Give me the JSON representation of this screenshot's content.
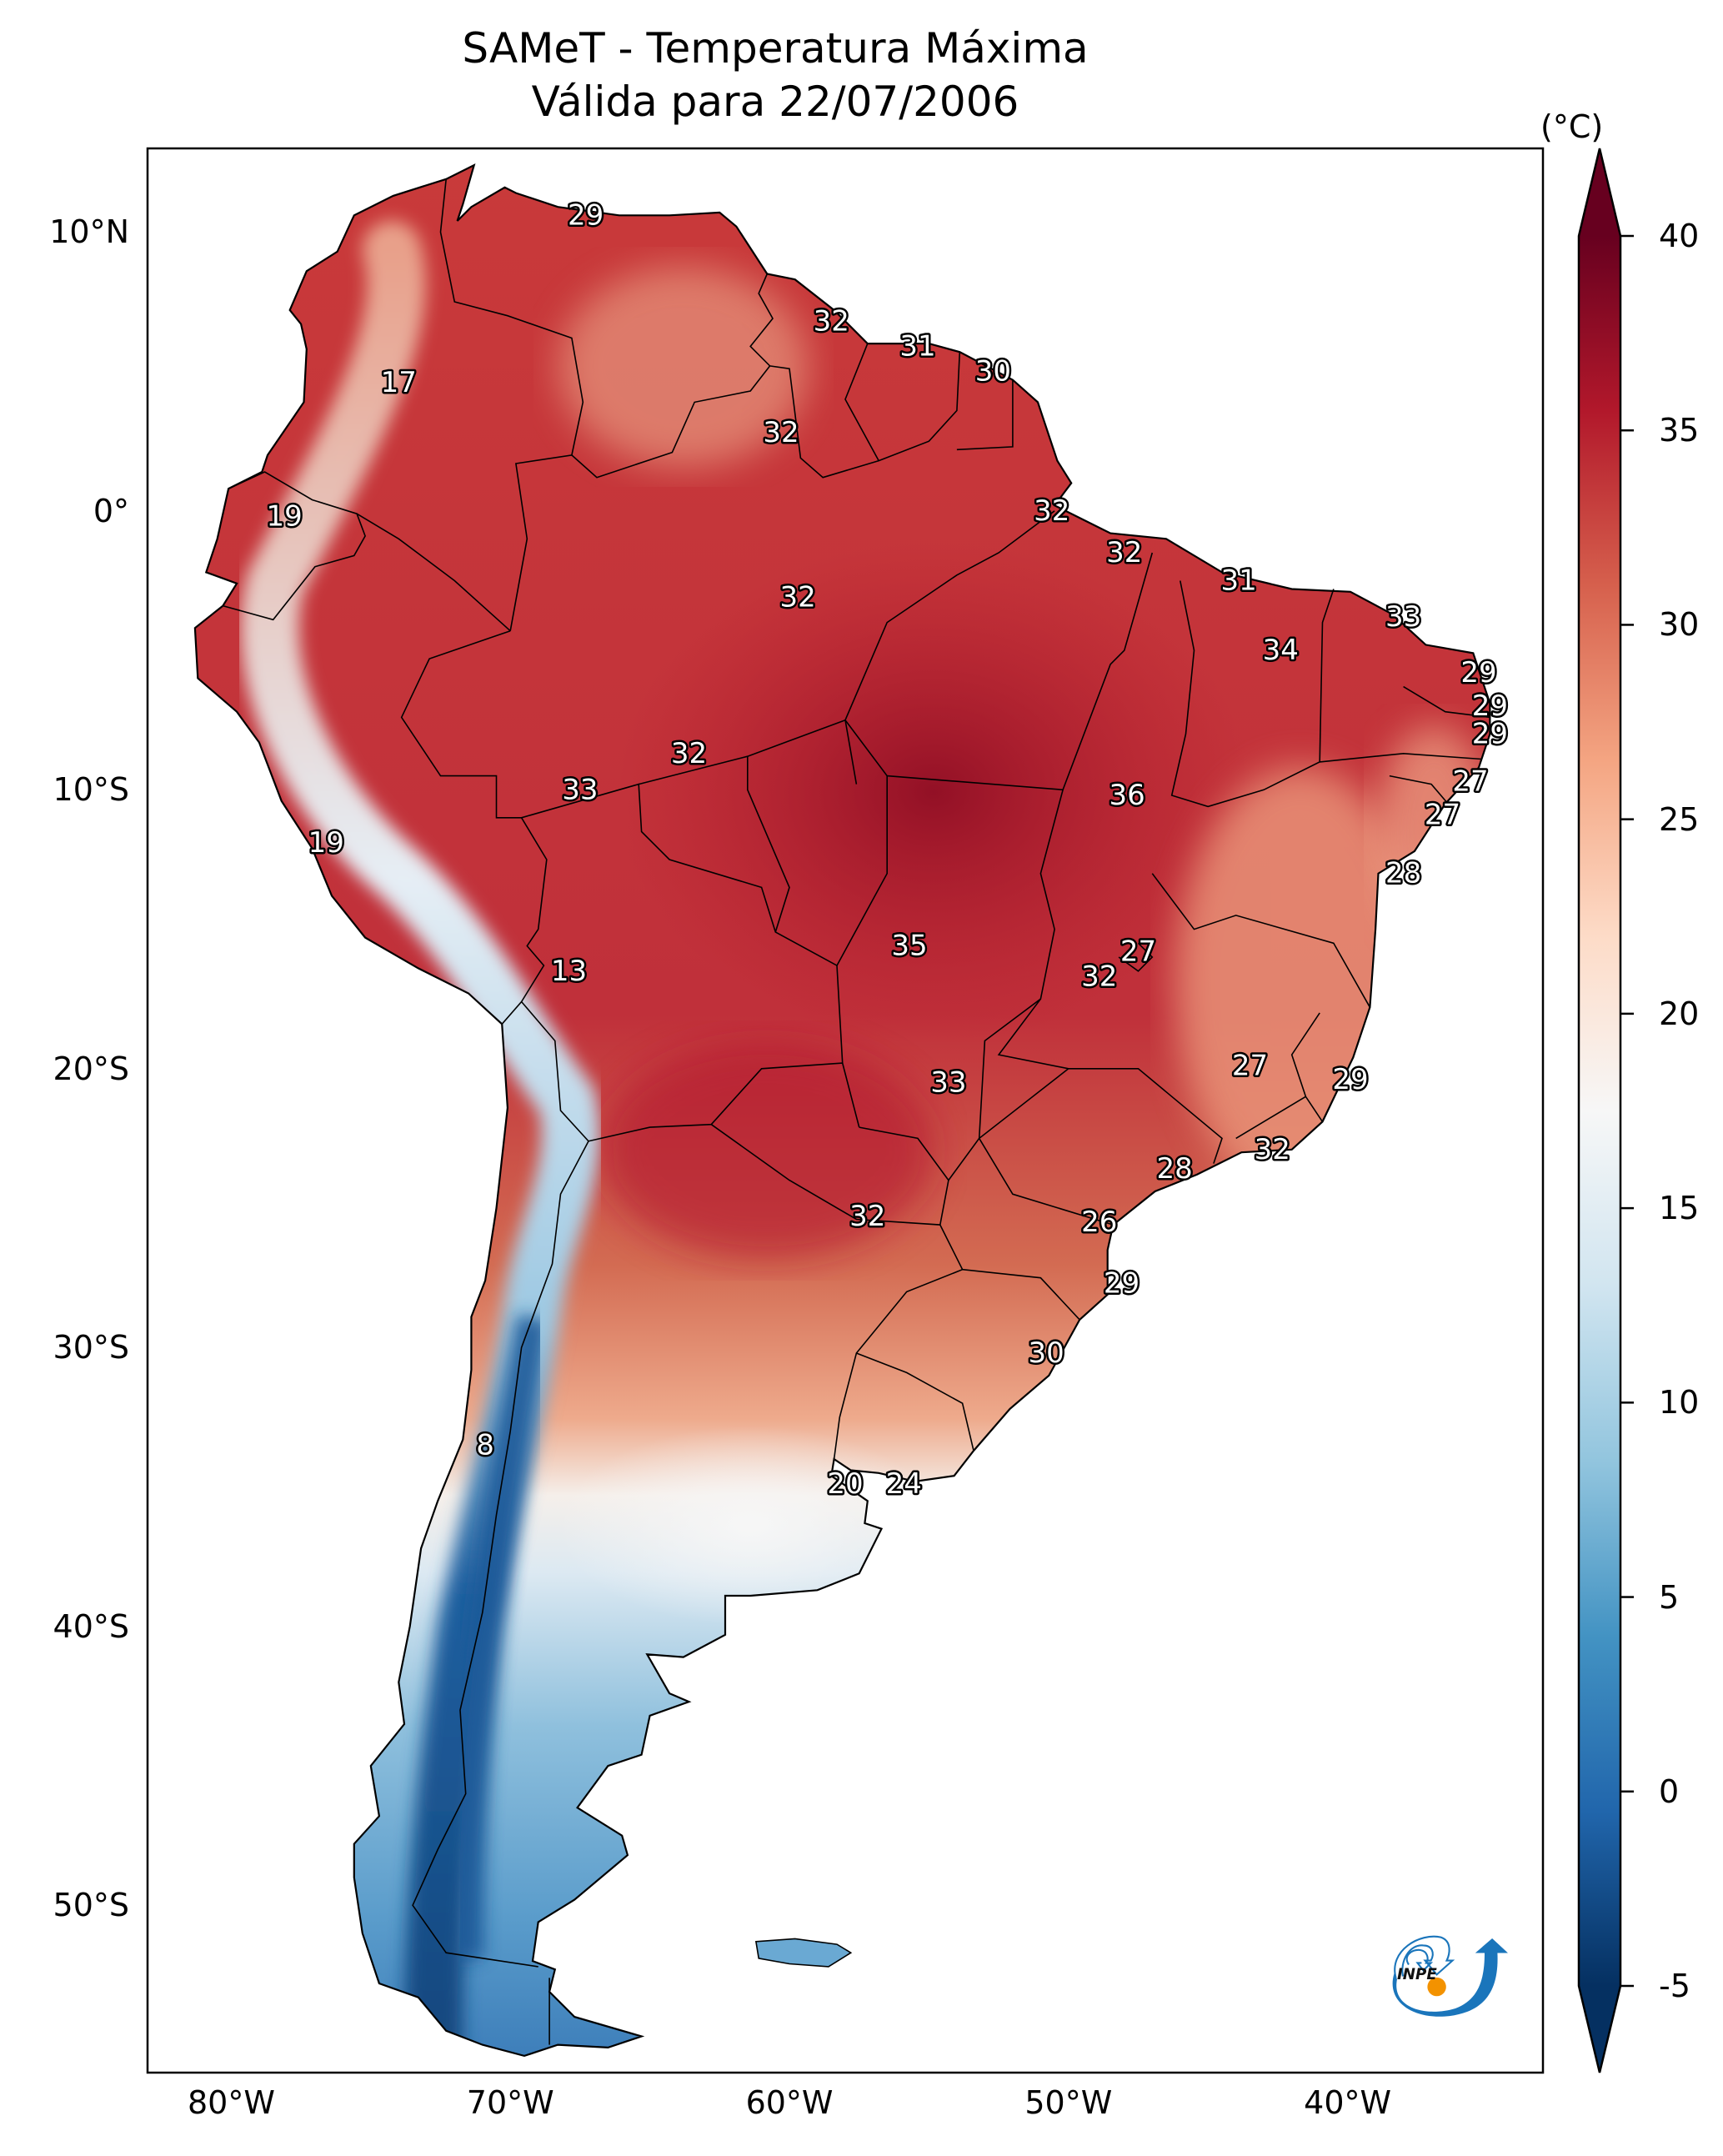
{
  "title": {
    "line1": "SAMeT - Temperatura Máxima",
    "line2": "Válida para 22/07/2006"
  },
  "map": {
    "extent": {
      "lon_min": -83,
      "lon_max": -33,
      "lat_min": -56,
      "lat_max": 13
    },
    "lat_ticks": [
      {
        "value": 10,
        "label": "10°N"
      },
      {
        "value": 0,
        "label": "0°"
      },
      {
        "value": -10,
        "label": "10°S"
      },
      {
        "value": -20,
        "label": "20°S"
      },
      {
        "value": -30,
        "label": "30°S"
      },
      {
        "value": -40,
        "label": "40°S"
      },
      {
        "value": -50,
        "label": "50°S"
      }
    ],
    "lon_ticks": [
      {
        "value": -80,
        "label": "80°W"
      },
      {
        "value": -70,
        "label": "70°W"
      },
      {
        "value": -60,
        "label": "60°W"
      },
      {
        "value": -50,
        "label": "50°W"
      },
      {
        "value": -40,
        "label": "40°W"
      }
    ],
    "station_labels": [
      {
        "text": "29",
        "lon": -67.3,
        "lat": 10.6
      },
      {
        "text": "32",
        "lon": -58.5,
        "lat": 6.8
      },
      {
        "text": "31",
        "lon": -55.4,
        "lat": 5.9
      },
      {
        "text": "30",
        "lon": -52.7,
        "lat": 5.0
      },
      {
        "text": "17",
        "lon": -74.0,
        "lat": 4.6
      },
      {
        "text": "32",
        "lon": -60.3,
        "lat": 2.8
      },
      {
        "text": "19",
        "lon": -78.1,
        "lat": -0.2
      },
      {
        "text": "32",
        "lon": -50.6,
        "lat": -0.0
      },
      {
        "text": "32",
        "lon": -48.0,
        "lat": -1.5
      },
      {
        "text": "31",
        "lon": -43.9,
        "lat": -2.5
      },
      {
        "text": "32",
        "lon": -59.7,
        "lat": -3.1
      },
      {
        "text": "33",
        "lon": -38.0,
        "lat": -3.8
      },
      {
        "text": "34",
        "lon": -42.4,
        "lat": -5.0
      },
      {
        "text": "29",
        "lon": -35.3,
        "lat": -5.8
      },
      {
        "text": "29",
        "lon": -34.9,
        "lat": -7.0
      },
      {
        "text": "29",
        "lon": -34.9,
        "lat": -8.0
      },
      {
        "text": "32",
        "lon": -63.6,
        "lat": -8.7
      },
      {
        "text": "27",
        "lon": -35.6,
        "lat": -9.7
      },
      {
        "text": "33",
        "lon": -67.5,
        "lat": -10.0
      },
      {
        "text": "36",
        "lon": -47.9,
        "lat": -10.2
      },
      {
        "text": "27",
        "lon": -36.6,
        "lat": -10.9
      },
      {
        "text": "19",
        "lon": -76.6,
        "lat": -11.9
      },
      {
        "text": "28",
        "lon": -38.0,
        "lat": -13.0
      },
      {
        "text": "35",
        "lon": -55.7,
        "lat": -15.6
      },
      {
        "text": "27",
        "lon": -47.5,
        "lat": -15.8
      },
      {
        "text": "13",
        "lon": -67.9,
        "lat": -16.5
      },
      {
        "text": "32",
        "lon": -48.9,
        "lat": -16.7
      },
      {
        "text": "27",
        "lon": -43.5,
        "lat": -19.9
      },
      {
        "text": "29",
        "lon": -39.9,
        "lat": -20.4
      },
      {
        "text": "33",
        "lon": -54.3,
        "lat": -20.5
      },
      {
        "text": "32",
        "lon": -42.7,
        "lat": -22.9
      },
      {
        "text": "28",
        "lon": -46.2,
        "lat": -23.6
      },
      {
        "text": "32",
        "lon": -57.2,
        "lat": -25.3
      },
      {
        "text": "26",
        "lon": -48.9,
        "lat": -25.5
      },
      {
        "text": "29",
        "lon": -48.1,
        "lat": -27.7
      },
      {
        "text": "30",
        "lon": -50.8,
        "lat": -30.2
      },
      {
        "text": "8",
        "lon": -70.9,
        "lat": -33.5
      },
      {
        "text": "20",
        "lon": -58.0,
        "lat": -34.9
      },
      {
        "text": "24",
        "lon": -55.9,
        "lat": -34.9
      }
    ]
  },
  "colorbar": {
    "unit": "(°C)",
    "min": -5,
    "max": 40,
    "extend": "both",
    "colormap": "RdBu_r",
    "ticks": [
      {
        "value": 40,
        "label": "40"
      },
      {
        "value": 35,
        "label": "35"
      },
      {
        "value": 30,
        "label": "30"
      },
      {
        "value": 25,
        "label": "25"
      },
      {
        "value": 20,
        "label": "20"
      },
      {
        "value": 15,
        "label": "15"
      },
      {
        "value": 10,
        "label": "10"
      },
      {
        "value": 5,
        "label": "5"
      },
      {
        "value": 0,
        "label": "0"
      },
      {
        "value": -5,
        "label": "-5"
      }
    ],
    "colors": [
      "#053061",
      "#2166ac",
      "#4393c3",
      "#92c5de",
      "#d1e5f0",
      "#f7f7f7",
      "#fddbc7",
      "#f4a582",
      "#d6604d",
      "#b2182b",
      "#67001f"
    ]
  },
  "logo": {
    "name": "INPE",
    "text": "INPE",
    "colors": {
      "blue": "#1a75bb",
      "orange": "#f39200"
    }
  }
}
